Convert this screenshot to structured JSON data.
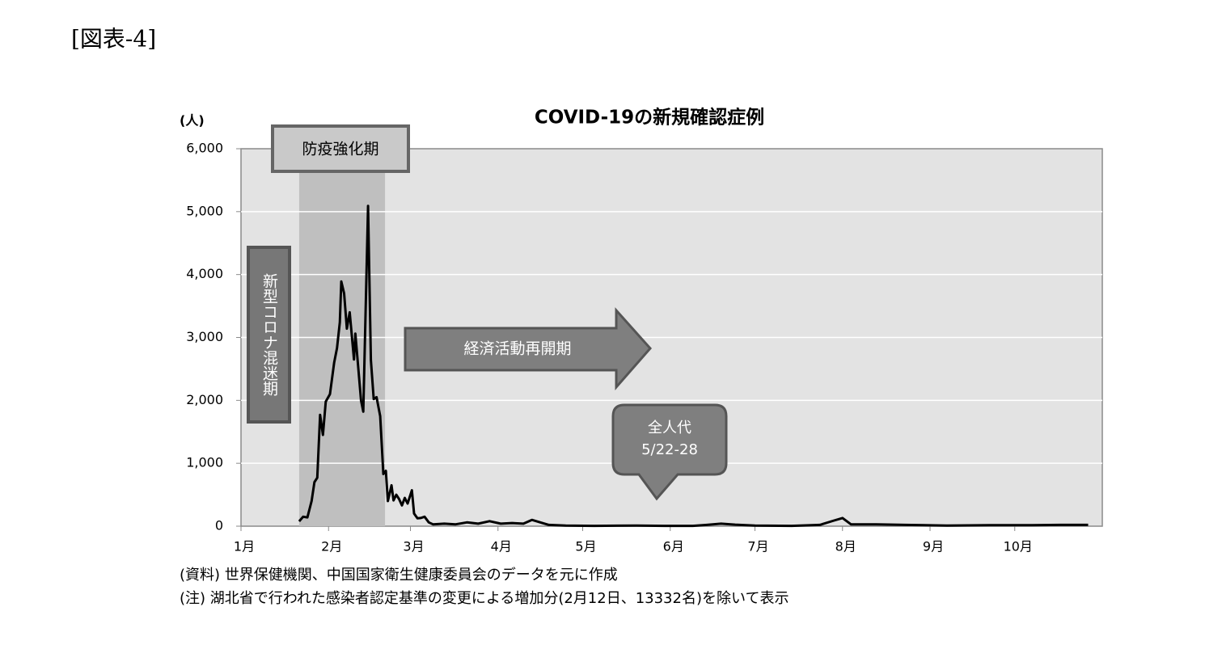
{
  "figure_label": "[図表-4]",
  "chart_data": {
    "type": "line",
    "title": "COVID-19の新規確認症例",
    "y_label": "(人)",
    "color": "#000000",
    "xlim": [
      0,
      305
    ],
    "xticks": [
      {
        "value": 0,
        "label": "1月"
      },
      {
        "value": 31,
        "label": "2月"
      },
      {
        "value": 60,
        "label": "3月"
      },
      {
        "value": 91,
        "label": "4月"
      },
      {
        "value": 121,
        "label": "5月"
      },
      {
        "value": 152,
        "label": "6月"
      },
      {
        "value": 182,
        "label": "7月"
      },
      {
        "value": 213,
        "label": "8月"
      },
      {
        "value": 244,
        "label": "9月"
      },
      {
        "value": 274,
        "label": "10月"
      }
    ],
    "ylim": [
      0,
      6000
    ],
    "yticks": [
      0,
      {
        "value": 1000,
        "label": "1,000"
      },
      {
        "value": 2000,
        "label": "2,000"
      },
      {
        "value": 3000,
        "label": "3,000"
      },
      {
        "value": 4000,
        "label": "4,000"
      },
      {
        "value": 5000,
        "label": "5,000"
      },
      {
        "value": 6000,
        "label": "6,000"
      }
    ],
    "grid": true,
    "x": [
      20.6,
      22,
      23.5,
      25,
      26,
      27,
      28,
      29,
      30,
      31.5,
      33,
      34,
      35,
      35.5,
      36.5,
      37.5,
      38.5,
      40,
      40.5,
      42.5,
      43.3,
      45,
      46,
      47,
      48,
      49.3,
      50.4,
      51.3,
      52,
      53.3,
      54,
      55,
      56,
      57,
      58,
      59,
      60.5,
      61.3,
      62.5,
      63.6,
      65,
      66.5,
      68,
      72,
      76,
      80,
      84,
      88,
      92,
      96,
      100,
      103,
      106,
      109,
      115,
      125,
      140,
      150,
      160,
      165,
      170,
      175,
      182,
      195,
      205,
      210,
      213,
      216,
      225,
      235,
      250,
      265,
      280,
      290,
      300
    ],
    "values": [
      77,
      150,
      140,
      400,
      700,
      770,
      1770,
      1450,
      1980,
      2100,
      2600,
      2830,
      3240,
      3890,
      3700,
      3140,
      3400,
      2650,
      3060,
      2000,
      1820,
      5090,
      2640,
      2020,
      2050,
      1750,
      830,
      880,
      400,
      650,
      410,
      500,
      430,
      330,
      450,
      360,
      570,
      200,
      125,
      130,
      150,
      60,
      30,
      40,
      30,
      60,
      40,
      80,
      40,
      50,
      40,
      100,
      60,
      20,
      10,
      5,
      10,
      5,
      5,
      20,
      40,
      25,
      10,
      5,
      20,
      90,
      130,
      30,
      30,
      20,
      10,
      15,
      15,
      20,
      20
    ],
    "period_box": {
      "label": "防疫強化期",
      "from": 20.6,
      "to": 51
    },
    "side_label": "新型コロナ混迷期",
    "arrow_label": "経済活動再開期",
    "callout": [
      "全人代",
      "5/22-28"
    ],
    "notes": [
      "(資料) 世界保健機関、中国国家衛生健康委員会のデータを元に作成",
      "(注) 湖北省で行われた感染者認定基準の変更による増加分(2月12日、13332名)を除いて表示"
    ]
  }
}
